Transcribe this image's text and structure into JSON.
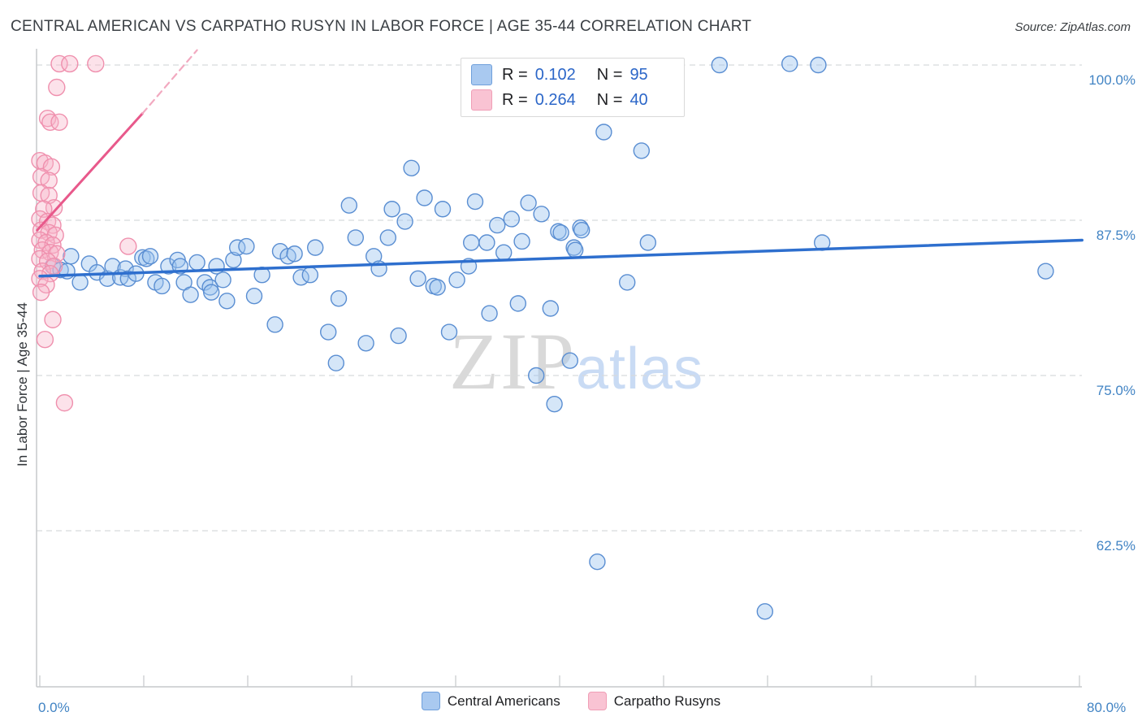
{
  "header": {
    "title": "CENTRAL AMERICAN VS CARPATHO RUSYN IN LABOR FORCE | AGE 35-44 CORRELATION CHART",
    "source": "Source: ZipAtlas.com"
  },
  "watermark": {
    "zip": "ZIP",
    "atlas": "atlas"
  },
  "legend_box": {
    "rows": [
      {
        "r_label": "R =",
        "r_value": "0.102",
        "n_label": "N =",
        "n_value": "95",
        "swatch_fill": "#a9c9f0",
        "swatch_border": "#6f9fdb"
      },
      {
        "r_label": "R =",
        "r_value": "0.264",
        "n_label": "N =",
        "n_value": "40",
        "swatch_fill": "#f9c3d3",
        "swatch_border": "#f09eb6"
      }
    ]
  },
  "bottom_legend": [
    {
      "label": "Central Americans",
      "swatch_fill": "#a9c9f0",
      "swatch_border": "#6f9fdb"
    },
    {
      "label": "Carpatho Rusyns",
      "swatch_fill": "#f9c3d3",
      "swatch_border": "#f09eb6"
    }
  ],
  "chart_data": {
    "type": "scatter",
    "title": "Central American vs Carpatho Rusyn In Labor Force | Age 35-44",
    "xlabel": "",
    "ylabel": "In Labor Force | Age 35-44",
    "x_axis": {
      "min": 0,
      "max": 80,
      "tick_count": 11,
      "left_label": "0.0%",
      "right_label": "80.0%"
    },
    "y_axis": {
      "label": "In Labor Force | Age 35-44",
      "min": 50,
      "max": 101.3,
      "ticks": [
        {
          "label": "100.0%",
          "value": 100
        },
        {
          "label": "87.5%",
          "value": 87.5
        },
        {
          "label": "75.0%",
          "value": 75
        },
        {
          "label": "62.5%",
          "value": 62.5
        }
      ],
      "grid": true
    },
    "series": [
      {
        "name": "Central Americans",
        "R": 0.102,
        "N": 95,
        "stroke": "#5a8ed2",
        "fill": "rgba(155,195,238,0.42)",
        "radius": 9.5,
        "points": [
          [
            2.4,
            84.6
          ],
          [
            1.0,
            83.8
          ],
          [
            1.6,
            83.5
          ],
          [
            2.1,
            83.4
          ],
          [
            3.1,
            82.5
          ],
          [
            3.8,
            84.0
          ],
          [
            4.4,
            83.3
          ],
          [
            5.2,
            82.8
          ],
          [
            5.6,
            83.8
          ],
          [
            6.2,
            82.9
          ],
          [
            6.6,
            83.6
          ],
          [
            6.8,
            82.8
          ],
          [
            7.4,
            83.2
          ],
          [
            7.9,
            84.5
          ],
          [
            8.2,
            84.4
          ],
          [
            8.5,
            84.6
          ],
          [
            8.9,
            82.5
          ],
          [
            9.4,
            82.2
          ],
          [
            9.9,
            83.8
          ],
          [
            10.6,
            84.3
          ],
          [
            10.8,
            83.8
          ],
          [
            11.1,
            82.5
          ],
          [
            11.6,
            81.5
          ],
          [
            12.1,
            84.1
          ],
          [
            12.7,
            82.5
          ],
          [
            13.1,
            82.1
          ],
          [
            13.2,
            81.7
          ],
          [
            13.6,
            83.8
          ],
          [
            14.1,
            82.7
          ],
          [
            14.4,
            81.0
          ],
          [
            14.9,
            84.3
          ],
          [
            15.2,
            85.3
          ],
          [
            15.9,
            85.4
          ],
          [
            16.5,
            81.4
          ],
          [
            17.1,
            83.1
          ],
          [
            18.1,
            79.1
          ],
          [
            18.5,
            85.0
          ],
          [
            19.1,
            84.6
          ],
          [
            19.6,
            84.8
          ],
          [
            20.1,
            82.9
          ],
          [
            20.8,
            83.1
          ],
          [
            21.2,
            85.3
          ],
          [
            22.2,
            78.5
          ],
          [
            28.6,
            91.7
          ],
          [
            23.8,
            88.7
          ],
          [
            27.1,
            88.4
          ],
          [
            29.6,
            89.3
          ],
          [
            31.0,
            88.4
          ],
          [
            33.5,
            89.0
          ],
          [
            28.1,
            87.4
          ],
          [
            37.6,
            88.9
          ],
          [
            38.6,
            88.0
          ],
          [
            35.2,
            87.1
          ],
          [
            36.3,
            87.6
          ],
          [
            39.9,
            86.6
          ],
          [
            41.6,
            86.9
          ],
          [
            24.3,
            86.1
          ],
          [
            26.8,
            86.1
          ],
          [
            33.2,
            85.7
          ],
          [
            34.4,
            85.7
          ],
          [
            35.7,
            84.9
          ],
          [
            37.1,
            85.8
          ],
          [
            41.1,
            85.3
          ],
          [
            46.8,
            85.7
          ],
          [
            25.7,
            84.6
          ],
          [
            26.1,
            83.6
          ],
          [
            33.0,
            83.8
          ],
          [
            29.1,
            82.8
          ],
          [
            30.3,
            82.2
          ],
          [
            30.6,
            82.1
          ],
          [
            32.1,
            82.7
          ],
          [
            45.2,
            82.5
          ],
          [
            23.0,
            81.2
          ],
          [
            36.8,
            80.8
          ],
          [
            34.6,
            80.0
          ],
          [
            39.3,
            80.4
          ],
          [
            31.5,
            78.5
          ],
          [
            27.6,
            78.2
          ],
          [
            25.1,
            77.6
          ],
          [
            22.8,
            76.0
          ],
          [
            43.4,
            94.6
          ],
          [
            46.3,
            93.1
          ],
          [
            52.3,
            100.0
          ],
          [
            57.7,
            100.1
          ],
          [
            59.9,
            100.0
          ],
          [
            40.1,
            86.5
          ],
          [
            41.7,
            86.7
          ],
          [
            41.2,
            85.1
          ],
          [
            60.2,
            85.7
          ],
          [
            77.4,
            83.4
          ],
          [
            40.8,
            76.2
          ],
          [
            38.2,
            75.0
          ],
          [
            39.6,
            72.7
          ],
          [
            42.9,
            60.0
          ],
          [
            55.8,
            56.0
          ]
        ]
      },
      {
        "name": "Carpatho Rusyns",
        "R": 0.264,
        "N": 40,
        "stroke": "#ef8fad",
        "fill": "rgba(247,180,200,0.38)",
        "radius": 10,
        "points": [
          [
            1.5,
            100.1
          ],
          [
            2.3,
            100.1
          ],
          [
            4.3,
            100.1
          ],
          [
            1.3,
            98.2
          ],
          [
            0.6,
            95.7
          ],
          [
            0.8,
            95.4
          ],
          [
            1.5,
            95.4
          ],
          [
            0.0,
            92.3
          ],
          [
            0.4,
            92.1
          ],
          [
            0.9,
            91.8
          ],
          [
            0.1,
            91.0
          ],
          [
            0.7,
            90.7
          ],
          [
            0.1,
            89.7
          ],
          [
            0.7,
            89.5
          ],
          [
            1.1,
            88.5
          ],
          [
            0.3,
            88.4
          ],
          [
            0.0,
            87.6
          ],
          [
            0.6,
            87.4
          ],
          [
            1.0,
            87.1
          ],
          [
            0.1,
            86.7
          ],
          [
            0.7,
            86.5
          ],
          [
            1.2,
            86.3
          ],
          [
            0.0,
            85.9
          ],
          [
            0.5,
            85.7
          ],
          [
            1.0,
            85.5
          ],
          [
            0.2,
            85.1
          ],
          [
            0.8,
            84.9
          ],
          [
            1.3,
            84.8
          ],
          [
            0.0,
            84.4
          ],
          [
            0.6,
            84.2
          ],
          [
            1.1,
            83.8
          ],
          [
            0.2,
            83.4
          ],
          [
            0.8,
            83.2
          ],
          [
            0.0,
            82.8
          ],
          [
            0.5,
            82.3
          ],
          [
            0.1,
            81.7
          ],
          [
            6.8,
            85.4
          ],
          [
            1.0,
            79.5
          ],
          [
            0.4,
            77.9
          ],
          [
            1.9,
            72.8
          ]
        ]
      }
    ],
    "trend_lines": [
      {
        "name": "central-american-trend",
        "color": "#2e6fce",
        "width": 3.5,
        "dash": "",
        "p1": 0,
        "v1": 83.0,
        "p2": 80.2,
        "v2": 85.9
      },
      {
        "name": "carpatho-rusyn-trend",
        "color": "#e8598b",
        "width": 3,
        "dash": "",
        "p1": -0.2,
        "v1": 86.7,
        "p2": 7.9,
        "v2": 96.1
      },
      {
        "name": "carpatho-rusyn-trend-extension",
        "color": "#f2a9c0",
        "width": 2.2,
        "dash": "8,6",
        "p1": 7.9,
        "v1": 96.1,
        "p2": 12.1,
        "v2": 101.2
      }
    ],
    "frame": {
      "axis_color": "#c6c9cc",
      "grid_color": "#d8dadc"
    }
  }
}
